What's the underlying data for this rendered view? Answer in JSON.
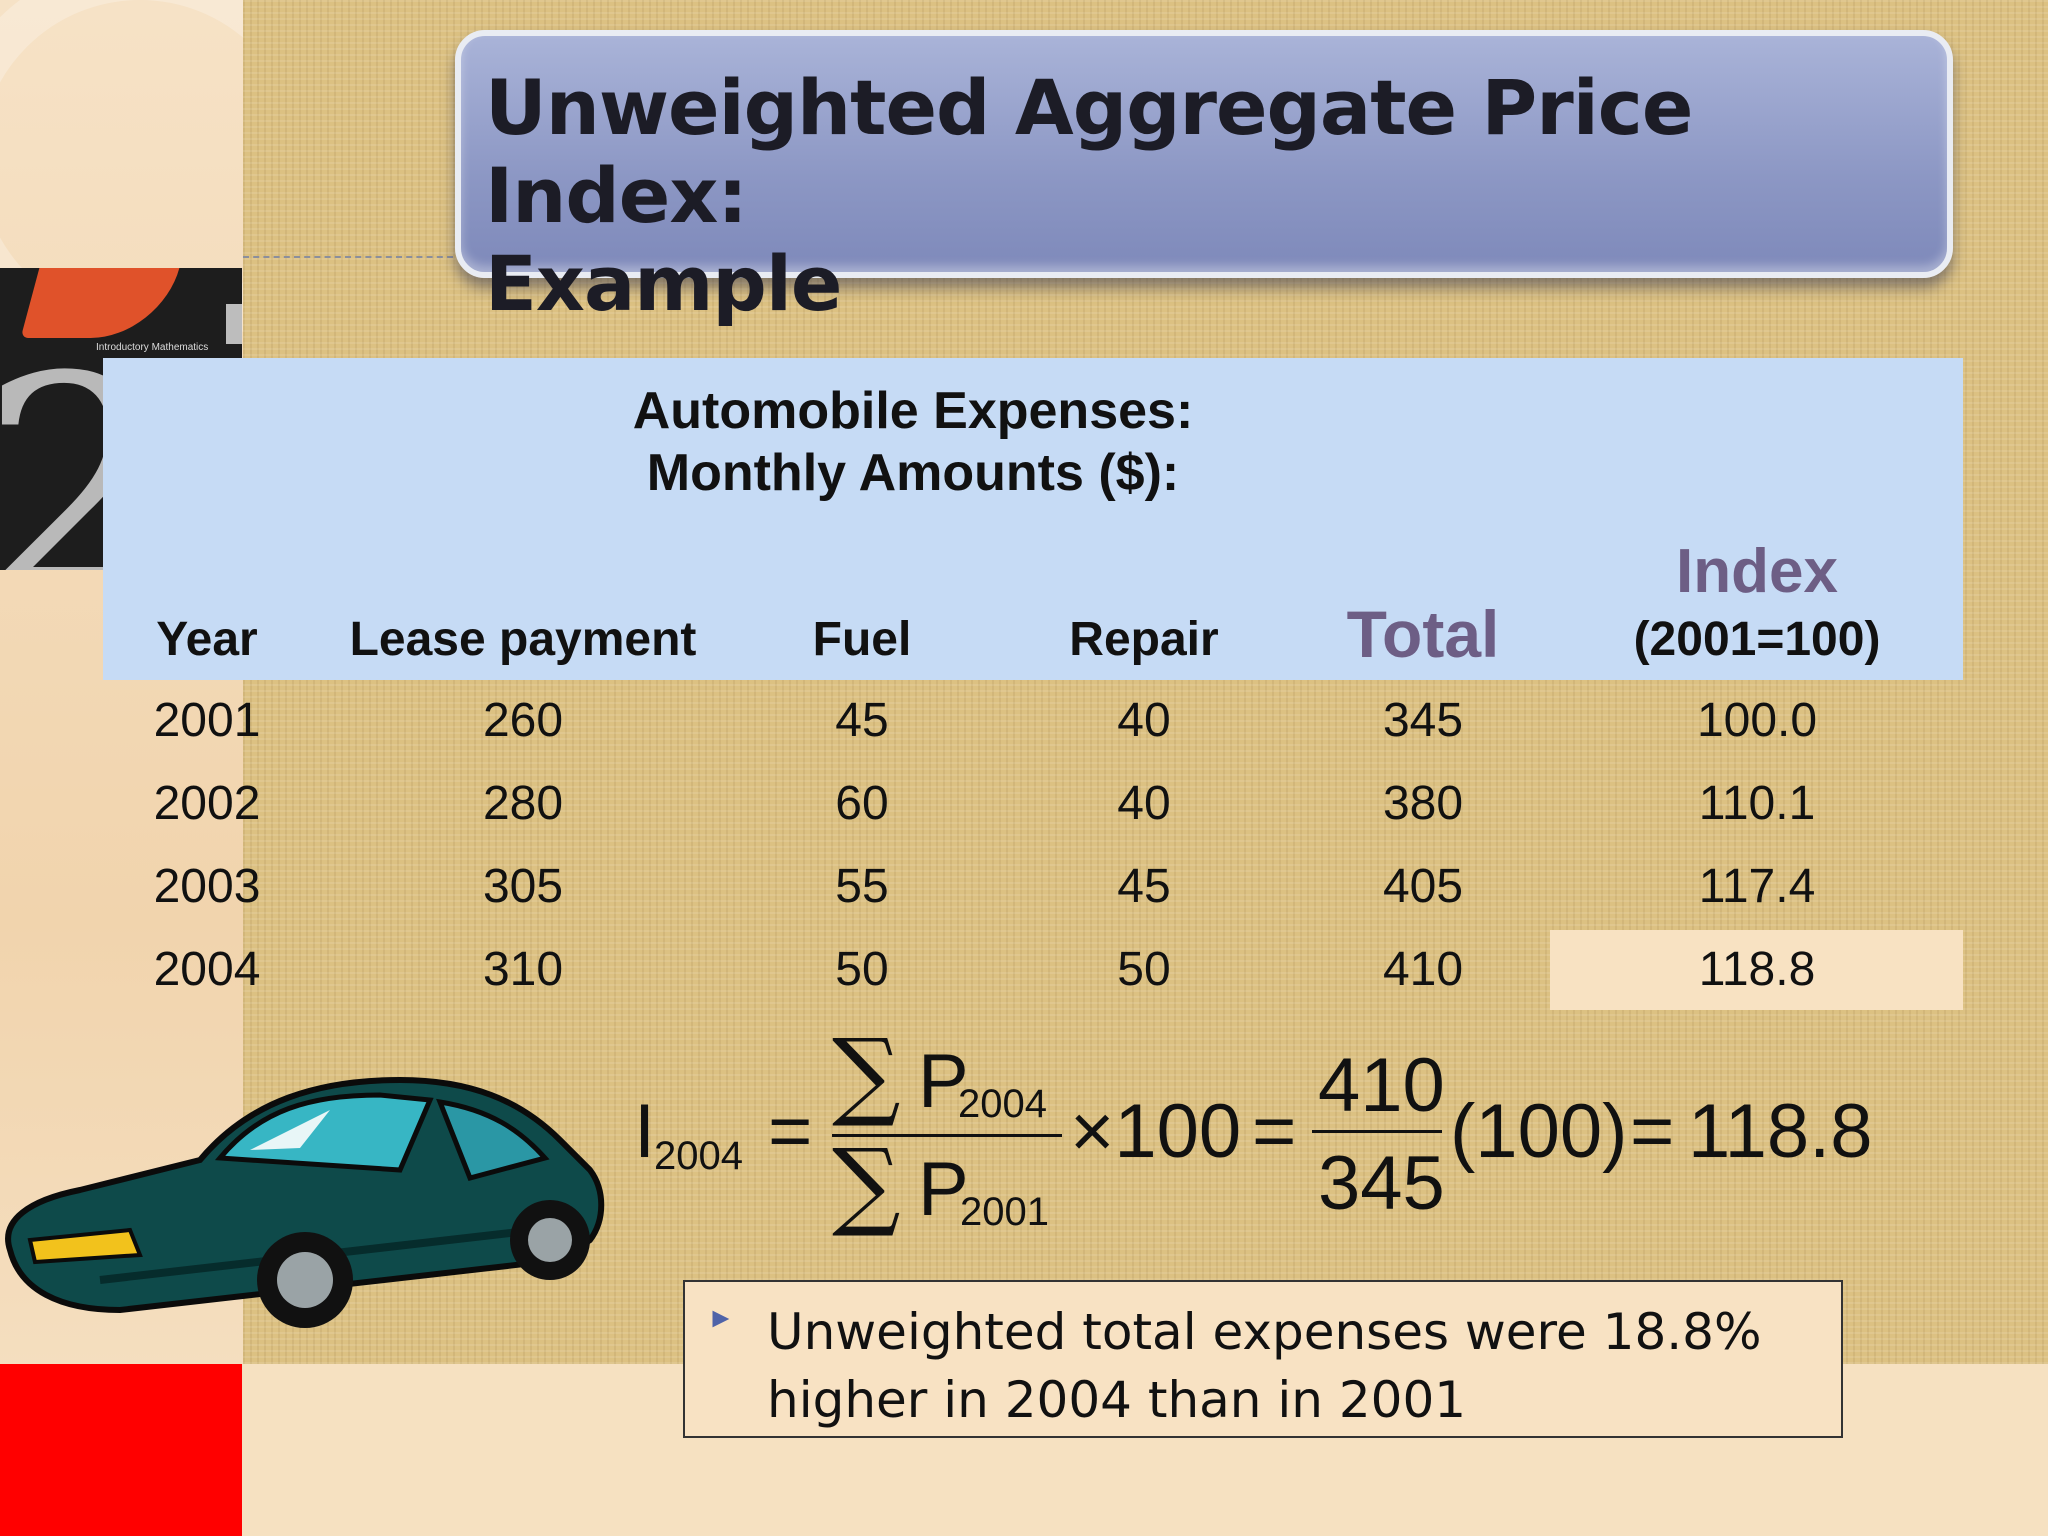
{
  "title": {
    "line1": "Unweighted Aggregate Price Index:",
    "line2": "Example"
  },
  "book_cover": {
    "text": "Introductory Mathematics",
    "digit": "2"
  },
  "table": {
    "subtitle_line1": "Automobile Expenses:",
    "subtitle_line2": "Monthly Amounts ($):",
    "headers": {
      "year": "Year",
      "lease": "Lease payment",
      "fuel": "Fuel",
      "repair": "Repair",
      "total": "Total",
      "index": "Index",
      "index_base": "(2001=100)"
    },
    "rows": [
      {
        "year": "2001",
        "lease": "260",
        "fuel": "45",
        "repair": "40",
        "total": "345",
        "index": "100.0"
      },
      {
        "year": "2002",
        "lease": "280",
        "fuel": "60",
        "repair": "40",
        "total": "380",
        "index": "110.1"
      },
      {
        "year": "2003",
        "lease": "305",
        "fuel": "55",
        "repair": "45",
        "total": "405",
        "index": "117.4"
      },
      {
        "year": "2004",
        "lease": "310",
        "fuel": "50",
        "repair": "50",
        "total": "410",
        "index": "118.8"
      }
    ]
  },
  "formula": {
    "lhs": "I",
    "lhs_sub": "2004",
    "eq1": "=",
    "sigma": "∑",
    "num_var": "P",
    "num_sub": "2004",
    "den_var": "P",
    "den_sub": "2001",
    "times100": "×100",
    "eq2": "=",
    "num_value": "410",
    "den_value": "345",
    "paren100": "(100)",
    "eq3": "=",
    "result": "118.8"
  },
  "callout": {
    "bullet": "►",
    "text": "Unweighted total expenses were 18.8% higher in 2004 than in 2001"
  }
}
